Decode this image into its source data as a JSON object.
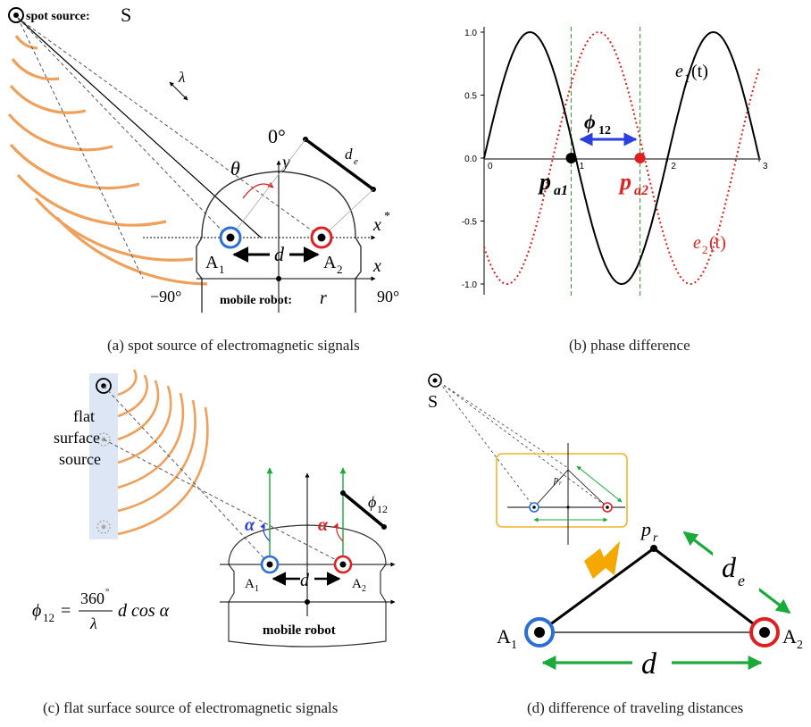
{
  "panel_a": {
    "caption": "(a) spot source of electromagnetic signals",
    "source_label": "spot source:",
    "source_letter": "S",
    "lambda": "λ",
    "angle_0": "0°",
    "angle_neg90": "−90°",
    "angle_90": "90°",
    "theta": "θ",
    "y_vec": "y",
    "x_vec": "x",
    "x_star_vec": "x",
    "x_star_sup": "*",
    "de": "d",
    "de_sub": "e",
    "d": "d",
    "a1": "A",
    "a1_sub": "1",
    "a2": "A",
    "a2_sub": "2",
    "robot_label": "mobile robot:",
    "robot_letter": "r",
    "colors": {
      "wave": "#f0a05a",
      "blue": "#2a6fd6",
      "red": "#e02020"
    }
  },
  "panel_b": {
    "caption": "(b) phase difference",
    "e1_label": "e",
    "e1_sub": "1",
    "e1_arg": "(t)",
    "e2_label": "e",
    "e2_sub": "2",
    "e2_arg": "(t)",
    "phi_label": "ϕ",
    "phi_sub": "12",
    "pa1": "p",
    "pa1_sub": "a1",
    "pa2": "p",
    "pa2_sub": "a2",
    "chart_data": {
      "type": "line",
      "x_ticks": [
        "0",
        "1",
        "2",
        "3"
      ],
      "y_ticks": [
        "1.0",
        "0.5",
        "0.0",
        "-0.5",
        "-1.0"
      ],
      "xlim": [
        0,
        3
      ],
      "ylim": [
        -1.1,
        1.1
      ],
      "series": [
        {
          "name": "e1(t)",
          "color": "#000000",
          "style": "solid",
          "period": 2,
          "phase": 0
        },
        {
          "name": "e2(t)",
          "color": "#e02020",
          "style": "dotted",
          "period": 2,
          "phase": -0.75
        }
      ],
      "markers": [
        {
          "x": 0.95,
          "y": 0,
          "color": "#000000"
        },
        {
          "x": 1.7,
          "y": 0,
          "color": "#e02020"
        }
      ],
      "dashed_vlines": [
        0.95,
        1.7
      ]
    }
  },
  "panel_c": {
    "caption": "(c) flat surface source of electromagnetic signals",
    "source_lines": [
      "flat",
      "surface",
      "source"
    ],
    "alpha": "α",
    "phi12": "ϕ",
    "phi12_sub": "12",
    "d": "d",
    "a1": "A",
    "a1_sub": "1",
    "a2": "A",
    "a2_sub": "2",
    "robot_label": "mobile robot",
    "formula_lhs": "ϕ",
    "formula_lhs_sub": "12",
    "formula_eq": "=",
    "formula_num": "360",
    "formula_num_sup": "°",
    "formula_den": "λ",
    "formula_rest": "d cos α"
  },
  "panel_d": {
    "caption": "(d) difference of traveling distances",
    "source_letter": "S",
    "pr": "p",
    "pr_sub": "r",
    "inset_pr": "p",
    "inset_pr_sub": "r",
    "de": "d",
    "de_sub": "e",
    "d": "d",
    "a1": "A",
    "a1_sub": "1",
    "a2": "A",
    "a2_sub": "2",
    "colors": {
      "green": "#1aaa3a",
      "inset_border": "#f0b429",
      "arrow": "#f5a800"
    }
  }
}
